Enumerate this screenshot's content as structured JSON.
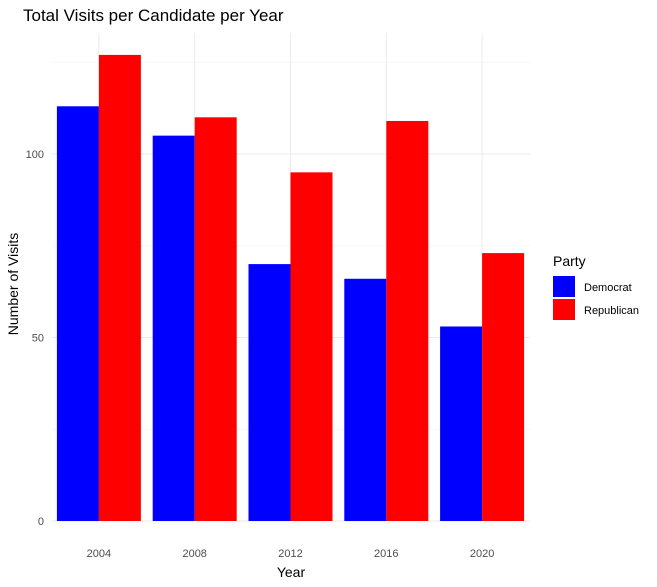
{
  "chart_data": {
    "type": "bar",
    "title": "Total Visits per Candidate per Year",
    "xlabel": "Year",
    "ylabel": "Number of Visits",
    "categories": [
      "2004",
      "2008",
      "2012",
      "2016",
      "2020"
    ],
    "series": [
      {
        "name": "Democrat",
        "values": [
          113,
          105,
          70,
          66,
          53
        ],
        "color": "#0000ff"
      },
      {
        "name": "Republican",
        "values": [
          127,
          110,
          95,
          109,
          73
        ],
        "color": "#ff0000"
      }
    ],
    "y_ticks": [
      0,
      50,
      100
    ],
    "ylim": [
      0,
      132
    ],
    "grid": true,
    "legend": {
      "title": "Party",
      "position": "right"
    }
  }
}
